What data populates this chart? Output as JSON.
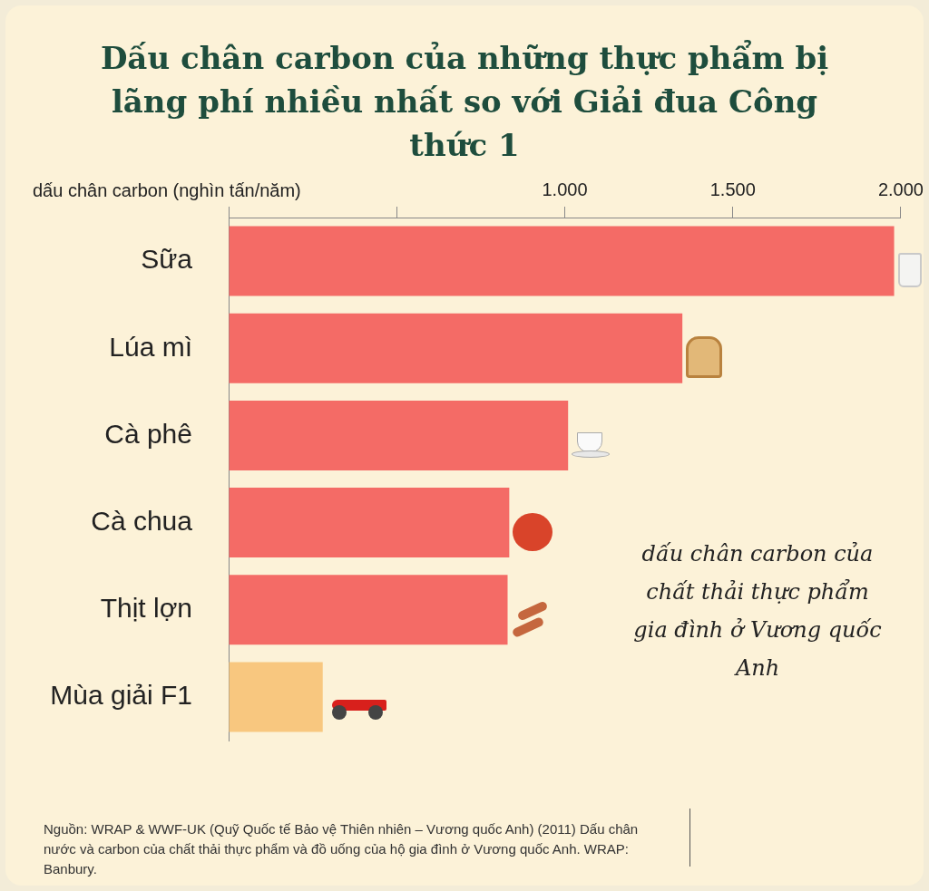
{
  "chart_data": {
    "type": "bar",
    "orientation": "horizontal",
    "title": "Dấu chân carbon của những thực phẩm bị lãng phí nhiều nhất so với Giải đua Công thức 1",
    "xlabel": "dấu chân carbon (nghìn tấn/năm)",
    "categories": [
      "Sữa",
      "Lúa mì",
      "Cà phê",
      "Cà chua",
      "Thịt lợn",
      "Mùa giải F1"
    ],
    "values": [
      1980,
      1350,
      1010,
      835,
      830,
      280
    ],
    "colors": [
      "#f46b66",
      "#f46b66",
      "#f46b66",
      "#f46b66",
      "#f46b66",
      "#f8c77f"
    ],
    "xlim": [
      0,
      2000
    ],
    "xticks": [
      {
        "value": 0,
        "label": null
      },
      {
        "value": 500,
        "label": null
      },
      {
        "value": 1000,
        "label": "1.000"
      },
      {
        "value": 1500,
        "label": "1.500"
      },
      {
        "value": 2000,
        "label": "2.000"
      }
    ],
    "grid": false,
    "legend": false,
    "annotations": [
      "dấu chân carbon của chất thải thực phẩm gia đình ở Vương quốc Anh",
      "Nguồn: WRAP & WWF-UK (Quỹ Quốc tế Bảo vệ Thiên nhiên – Vương quốc Anh) (2011) Dấu chân nước và carbon của chất thải thực phẩm và đồ uống của hộ gia đình ở Vương quốc Anh. WRAP: Banbury."
    ]
  }
}
